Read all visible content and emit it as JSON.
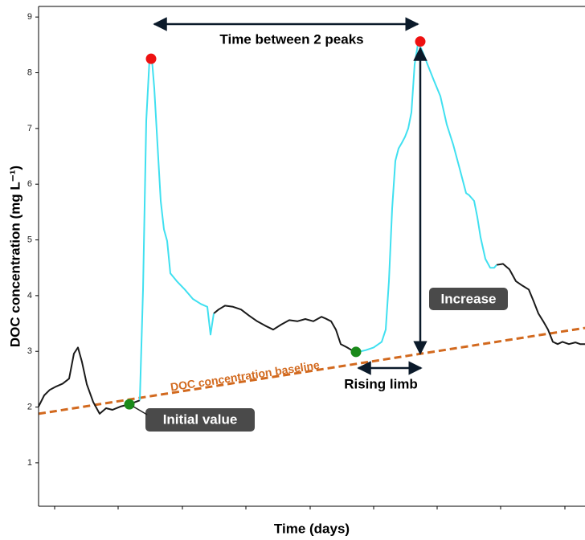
{
  "chart_data": {
    "type": "line",
    "xlabel": "Time (days)",
    "ylabel": "DOC concentration (mg L⁻¹)",
    "xlim": [
      0,
      680
    ],
    "xticks": [
      20,
      99,
      179,
      258,
      338,
      417,
      496,
      575,
      655
    ],
    "ylim": [
      0.22,
      9.19
    ],
    "yticks": [
      1,
      2,
      3,
      4,
      5,
      6,
      7,
      8,
      9
    ],
    "series": [
      {
        "color": "#1a1a1a",
        "x": [
          0,
          7,
          14,
          22,
          30,
          38,
          44,
          49,
          54,
          60,
          68,
          76,
          84,
          92,
          102,
          113,
          126,
          null,
          218,
          224,
          232,
          242,
          252,
          262,
          272,
          282,
          292,
          302,
          312,
          322,
          332,
          342,
          352,
          357,
          364,
          370,
          376,
          384,
          392,
          398,
          null,
          570,
          578,
          586,
          594,
          602,
          610,
          616,
          622,
          628,
          634,
          640,
          646,
          652,
          660,
          668,
          674,
          680
        ],
        "values": [
          2.01,
          2.21,
          2.31,
          2.37,
          2.42,
          2.51,
          2.96,
          3.07,
          2.81,
          2.41,
          2.09,
          1.88,
          1.98,
          1.95,
          2.01,
          2.05,
          2.12,
          null,
          3.68,
          3.75,
          3.82,
          3.8,
          3.75,
          3.64,
          3.54,
          3.46,
          3.39,
          3.48,
          3.56,
          3.54,
          3.58,
          3.54,
          3.62,
          3.59,
          3.54,
          3.39,
          3.13,
          3.07,
          3.0,
          2.99,
          null,
          4.55,
          4.57,
          4.47,
          4.26,
          4.18,
          4.11,
          3.9,
          3.68,
          3.54,
          3.39,
          3.17,
          3.13,
          3.17,
          3.13,
          3.16,
          3.13,
          3.13
        ]
      },
      {
        "color": "#40e0f0",
        "x": [
          126,
          130,
          134,
          138,
          141,
          144,
          148,
          152,
          156,
          160,
          164,
          172,
          182,
          192,
          202,
          210,
          214,
          218,
          null,
          398,
          407,
          417,
          427,
          432,
          436,
          440,
          444,
          448,
          452,
          456,
          460,
          464,
          468,
          472,
          476,
          480,
          484,
          492,
          500,
          508,
          516,
          524,
          532,
          536,
          542,
          546,
          550,
          556,
          562,
          567,
          570
        ],
        "values": [
          2.12,
          4.11,
          7.14,
          8.23,
          8.25,
          7.72,
          6.71,
          5.7,
          5.19,
          4.98,
          4.4,
          4.26,
          4.11,
          3.94,
          3.85,
          3.8,
          3.3,
          3.68,
          null,
          2.99,
          3.02,
          3.07,
          3.17,
          3.39,
          4.26,
          5.56,
          6.42,
          6.64,
          6.74,
          6.85,
          7.0,
          7.29,
          8.15,
          8.51,
          8.44,
          8.3,
          8.15,
          7.86,
          7.58,
          7.07,
          6.71,
          6.28,
          5.84,
          5.8,
          5.7,
          5.41,
          5.05,
          4.66,
          4.5,
          4.5,
          4.55
        ]
      }
    ],
    "baseline": {
      "color": "#d2691e",
      "x": [
        0,
        680
      ],
      "values": [
        1.88,
        3.42
      ]
    },
    "points": [
      {
        "color": "#ee1111",
        "x": [
          140,
          475
        ],
        "values": [
          8.25,
          8.56
        ]
      },
      {
        "color": "#1a8a1a",
        "x": [
          113,
          395
        ],
        "values": [
          2.05,
          2.99
        ]
      }
    ],
    "annotations": {
      "peaks": "Time between 2 peaks",
      "increase": "Increase",
      "rising": "Rising limb",
      "initial": "Initial value",
      "baseline": "DOC concentration baseline"
    }
  }
}
